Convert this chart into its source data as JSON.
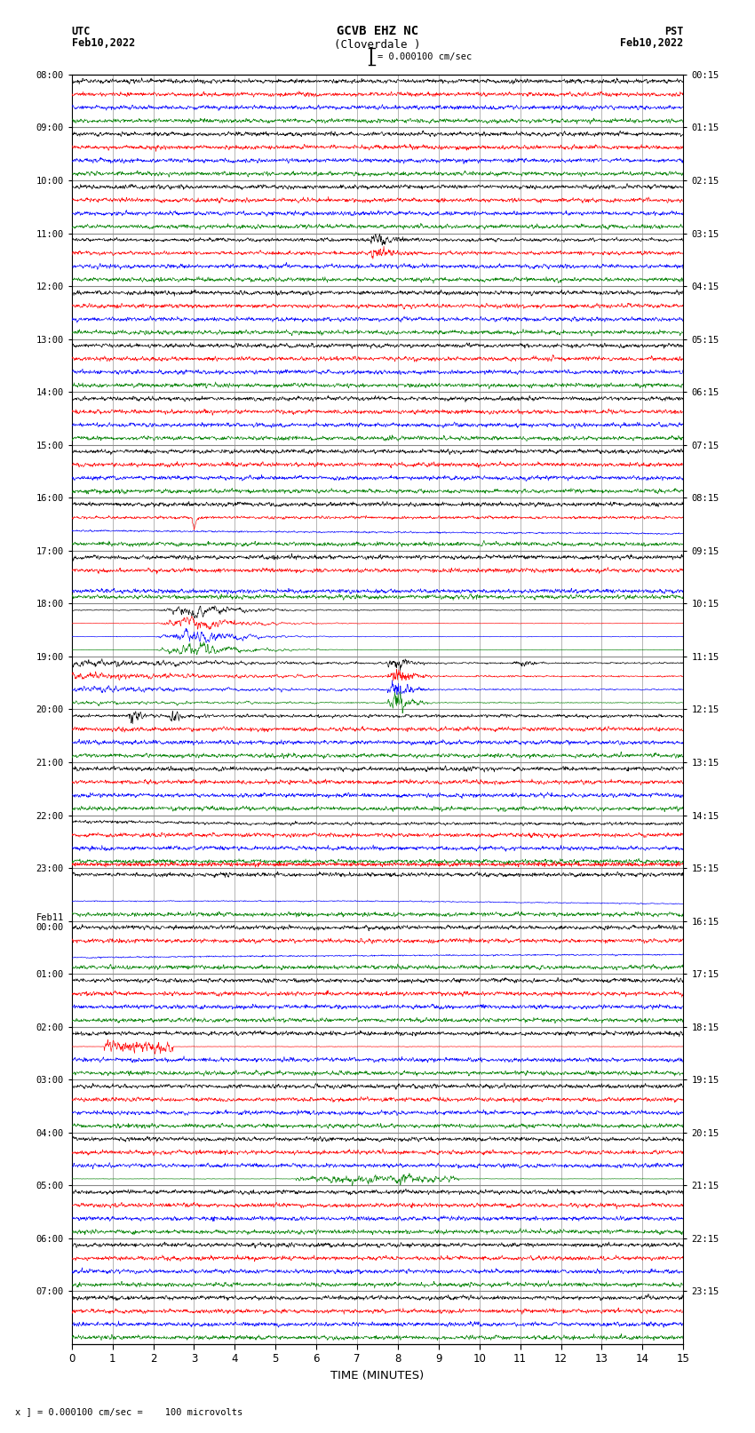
{
  "title_line1": "GCVB EHZ NC",
  "title_line2": "(Cloverdale )",
  "scale_label": "= 0.000100 cm/sec",
  "left_header_line1": "UTC",
  "left_header_line2": "Feb10,2022",
  "right_header_line1": "PST",
  "right_header_line2": "Feb10,2022",
  "bottom_note": "x ] = 0.000100 cm/sec =    100 microvolts",
  "xlabel": "TIME (MINUTES)",
  "utc_hours": [
    "08:00",
    "09:00",
    "10:00",
    "11:00",
    "12:00",
    "13:00",
    "14:00",
    "15:00",
    "16:00",
    "17:00",
    "18:00",
    "19:00",
    "20:00",
    "21:00",
    "22:00",
    "23:00",
    "Feb11\n00:00",
    "01:00",
    "02:00",
    "03:00",
    "04:00",
    "05:00",
    "06:00",
    "07:00"
  ],
  "pst_hours": [
    "00:15",
    "01:15",
    "02:15",
    "03:15",
    "04:15",
    "05:15",
    "06:15",
    "07:15",
    "08:15",
    "09:15",
    "10:15",
    "11:15",
    "12:15",
    "13:15",
    "14:15",
    "15:15",
    "16:15",
    "17:15",
    "18:15",
    "19:15",
    "20:15",
    "21:15",
    "22:15",
    "23:15"
  ],
  "num_hours": 24,
  "traces_per_hour": 4,
  "trace_colors": [
    "black",
    "red",
    "blue",
    "green"
  ],
  "bg_color": "#ffffff",
  "grid_color": "#aaaaaa",
  "xmin": 0,
  "xmax": 15,
  "xticks": [
    0,
    1,
    2,
    3,
    4,
    5,
    6,
    7,
    8,
    9,
    10,
    11,
    12,
    13,
    14,
    15
  ],
  "fig_width": 8.5,
  "fig_height": 16.13,
  "noise_base": [
    0.18,
    0.12,
    0.1,
    0.06
  ],
  "seed": 12345
}
